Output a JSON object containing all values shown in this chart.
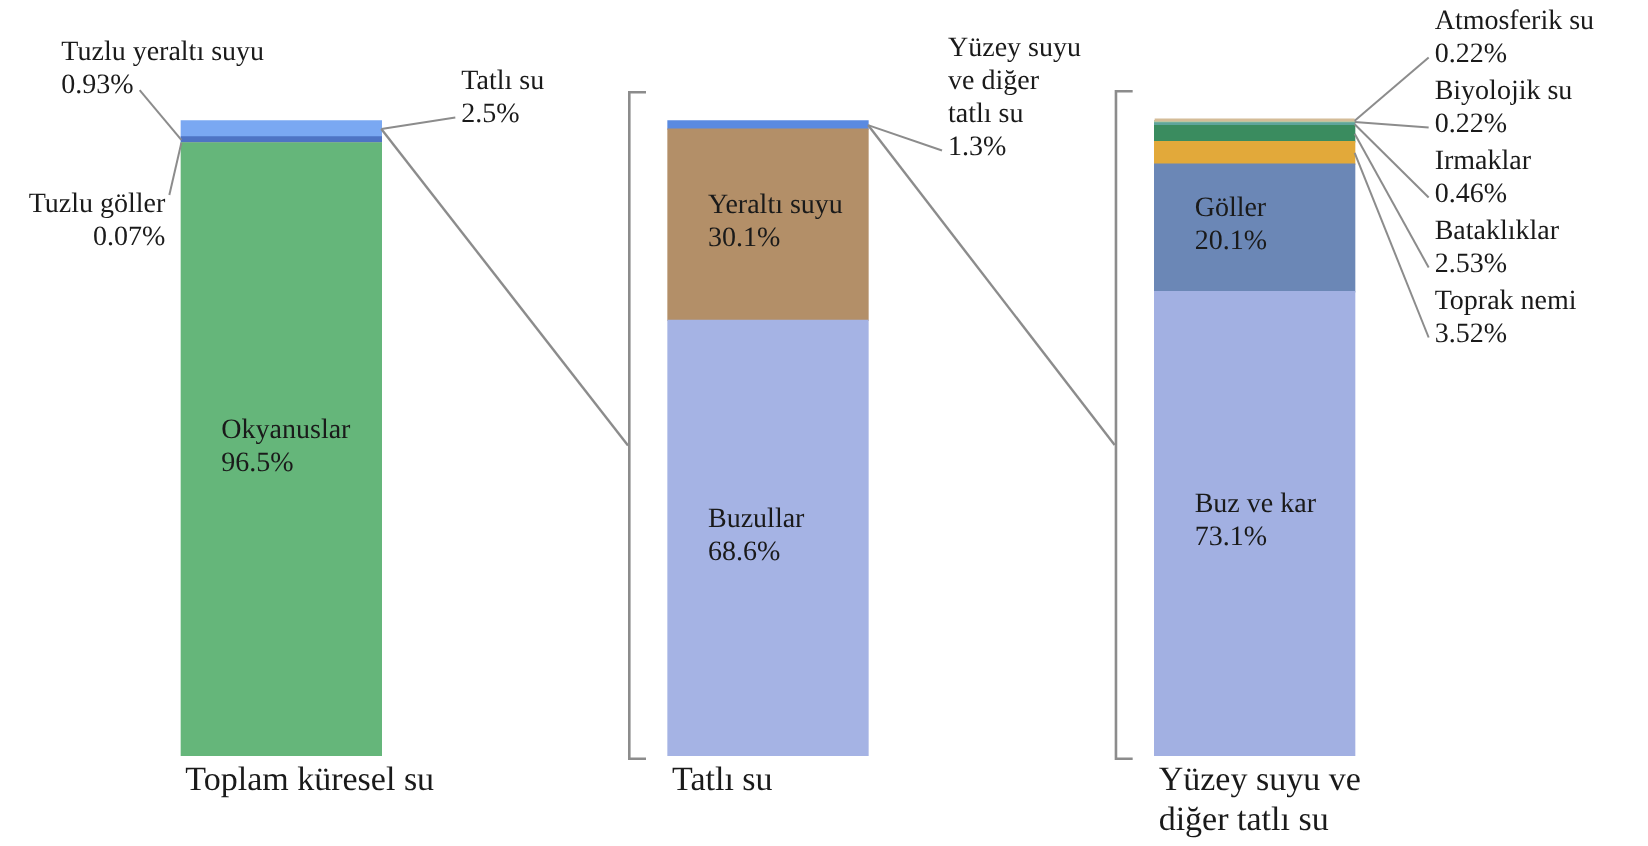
{
  "chart_data": {
    "type": "bar",
    "stacked": true,
    "legend": false,
    "grid": false,
    "tick_labels": "x",
    "categories": [
      "Toplam küresel su",
      "Tatlı su",
      "Yüzey suyu ve diğer tatlı su"
    ],
    "series": [
      {
        "name": "Okyanuslar",
        "color": "#65b67a",
        "values": [
          96.5,
          null,
          null
        ],
        "value_labels": [
          "96.5%",
          null,
          null
        ]
      },
      {
        "name": "Tuzlu göller",
        "color": "#8fa8a2",
        "values": [
          0.07,
          null,
          null
        ],
        "value_labels": [
          "0.07%",
          null,
          null
        ]
      },
      {
        "name": "Tuzlu yeraltı suyu",
        "color": "#4e74c4",
        "values": [
          0.93,
          null,
          null
        ],
        "value_labels": [
          "0.93%",
          null,
          null
        ]
      },
      {
        "name": "Tatlı su",
        "color": "#7aa8f2",
        "values": [
          2.5,
          null,
          null
        ],
        "value_labels": [
          "2.5%",
          null,
          null
        ]
      },
      {
        "name": "Buzullar",
        "color": "#a5b3e4",
        "values": [
          null,
          68.6,
          null
        ],
        "value_labels": [
          null,
          "68.6%",
          null
        ]
      },
      {
        "name": "Yeraltı suyu",
        "color": "#b38f68",
        "values": [
          null,
          30.1,
          null
        ],
        "value_labels": [
          null,
          "30.1%",
          null
        ]
      },
      {
        "name": "Yüzey suyu ve diğer tatlı su",
        "color": "#5a8ae0",
        "values": [
          null,
          1.3,
          null
        ],
        "value_labels": [
          null,
          "1.3%",
          null
        ]
      },
      {
        "name": "Buz ve kar",
        "color": "#a2b0e2",
        "values": [
          null,
          null,
          73.1
        ],
        "value_labels": [
          null,
          null,
          "73.1%"
        ]
      },
      {
        "name": "Göller",
        "color": "#6b87b6",
        "values": [
          null,
          null,
          20.1
        ],
        "value_labels": [
          null,
          null,
          "20.1%"
        ]
      },
      {
        "name": "Toprak nemi",
        "color": "#e2a93a",
        "values": [
          null,
          null,
          3.52
        ],
        "value_labels": [
          null,
          null,
          "3.52%"
        ]
      },
      {
        "name": "Bataklıklar",
        "color": "#3a8c5f",
        "values": [
          null,
          null,
          2.53
        ],
        "value_labels": [
          null,
          null,
          "2.53%"
        ]
      },
      {
        "name": "Irmaklar",
        "color": "#5fa59b",
        "values": [
          null,
          null,
          0.46
        ],
        "value_labels": [
          null,
          null,
          "0.46%"
        ]
      },
      {
        "name": "Biyolojik su",
        "color": "#a6cfa8",
        "values": [
          null,
          null,
          0.22
        ],
        "value_labels": [
          null,
          null,
          "0.22%"
        ]
      },
      {
        "name": "Atmosferik su",
        "color": "#d4bc98",
        "values": [
          null,
          null,
          0.22
        ],
        "value_labels": [
          null,
          null,
          "0.22%"
        ]
      }
    ]
  }
}
